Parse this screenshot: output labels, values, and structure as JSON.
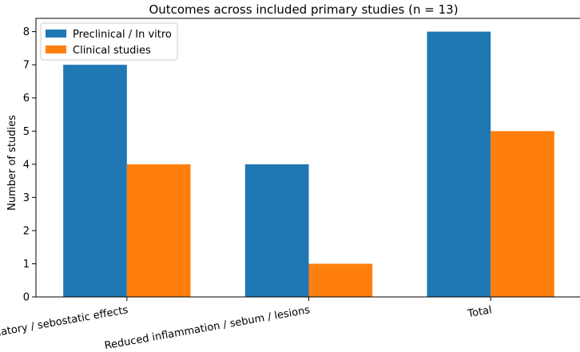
{
  "chart_data": {
    "type": "bar",
    "title": "Outcomes across included primary studies (n = 13)",
    "xlabel": "",
    "ylabel": "Number of studies",
    "categories": [
      "Anti-inflammatory / sebostatic effects",
      "Reduced inflammation / sebum / lesions",
      "Total"
    ],
    "series": [
      {
        "name": "Preclinical / In vitro",
        "values": [
          7,
          4,
          8
        ],
        "color": "#1f77b4"
      },
      {
        "name": "Clinical studies",
        "values": [
          4,
          1,
          5
        ],
        "color": "#ff7f0e"
      }
    ],
    "ylim": [
      0,
      8.4
    ],
    "yticks": [
      0,
      1,
      2,
      3,
      4,
      5,
      6,
      7,
      8
    ],
    "grid": false,
    "legend": "top-left"
  }
}
